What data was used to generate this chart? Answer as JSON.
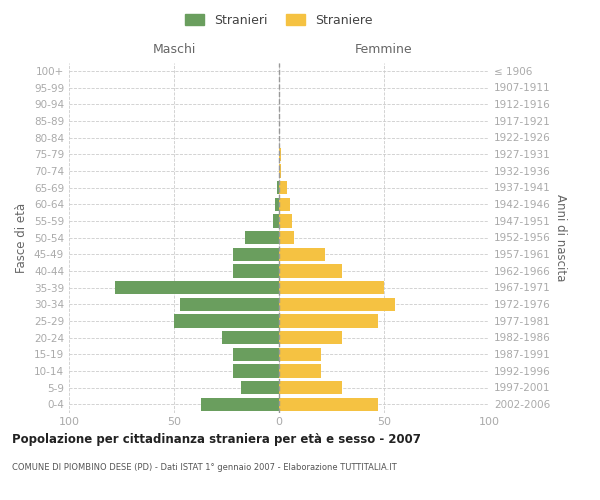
{
  "age_groups": [
    "100+",
    "95-99",
    "90-94",
    "85-89",
    "80-84",
    "75-79",
    "70-74",
    "65-69",
    "60-64",
    "55-59",
    "50-54",
    "45-49",
    "40-44",
    "35-39",
    "30-34",
    "25-29",
    "20-24",
    "15-19",
    "10-14",
    "5-9",
    "0-4"
  ],
  "birth_years": [
    "≤ 1906",
    "1907-1911",
    "1912-1916",
    "1917-1921",
    "1922-1926",
    "1927-1931",
    "1932-1936",
    "1937-1941",
    "1942-1946",
    "1947-1951",
    "1952-1956",
    "1957-1961",
    "1962-1966",
    "1967-1971",
    "1972-1976",
    "1977-1981",
    "1982-1986",
    "1987-1991",
    "1992-1996",
    "1997-2001",
    "2002-2006"
  ],
  "maschi": [
    0,
    0,
    0,
    0,
    0,
    0,
    0,
    1,
    2,
    3,
    16,
    22,
    22,
    78,
    47,
    50,
    27,
    22,
    22,
    18,
    37
  ],
  "femmine": [
    0,
    0,
    0,
    0,
    0,
    1,
    1,
    4,
    5,
    6,
    7,
    22,
    30,
    50,
    55,
    47,
    30,
    20,
    20,
    30,
    47
  ],
  "male_color": "#6a9e5e",
  "female_color": "#f5c242",
  "background_color": "#ffffff",
  "grid_color": "#cccccc",
  "title": "Popolazione per cittadinanza straniera per età e sesso - 2007",
  "subtitle": "COMUNE DI PIOMBINO DESE (PD) - Dati ISTAT 1° gennaio 2007 - Elaborazione TUTTITALIA.IT",
  "xlabel_left": "Maschi",
  "xlabel_right": "Femmine",
  "ylabel_left": "Fasce di età",
  "ylabel_right": "Anni di nascita",
  "legend_male": "Stranieri",
  "legend_female": "Straniere",
  "xlim": 100,
  "bar_height": 0.8,
  "center_line_color": "#999999",
  "tick_color": "#aaaaaa",
  "label_color": "#666666"
}
